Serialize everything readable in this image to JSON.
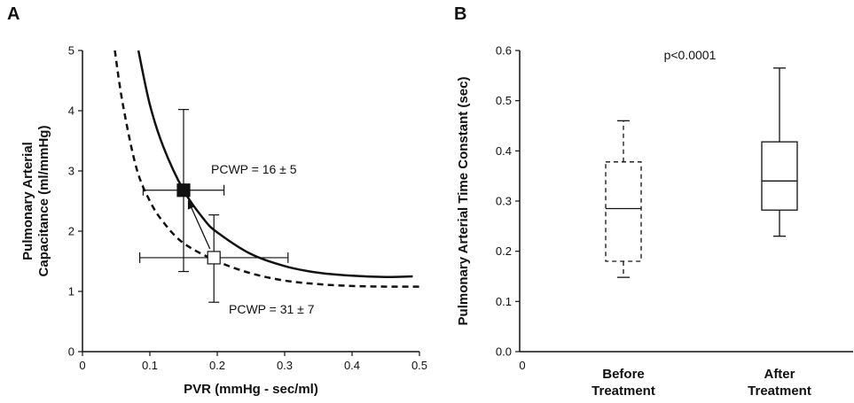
{
  "chart_data": [
    {
      "panel": "A",
      "type": "line",
      "xlabel": "PVR (mmHg - sec/ml)",
      "ylabel_lines": [
        "Pulmonary Arterial",
        "Capacitance (ml/mmHg)"
      ],
      "xlim": [
        0,
        0.5
      ],
      "ylim": [
        0,
        5
      ],
      "x_ticks": [
        "0",
        "0.1",
        "0.2",
        "0.3",
        "0.4",
        "0.5"
      ],
      "y_ticks": [
        "0",
        "1",
        "2",
        "3",
        "4",
        "5"
      ],
      "grid": false,
      "series": [
        {
          "style": "solid",
          "x": [
            0.083,
            0.1,
            0.12,
            0.15,
            0.18,
            0.2,
            0.25,
            0.3,
            0.35,
            0.4,
            0.45,
            0.49
          ],
          "y": [
            5.0,
            4.1,
            3.4,
            2.68,
            2.2,
            1.98,
            1.62,
            1.42,
            1.31,
            1.26,
            1.24,
            1.25
          ]
        },
        {
          "style": "dashed",
          "x": [
            0.048,
            0.06,
            0.08,
            0.1,
            0.12,
            0.15,
            0.2,
            0.25,
            0.3,
            0.35,
            0.4,
            0.45,
            0.5
          ],
          "y": [
            5.0,
            4.1,
            3.05,
            2.5,
            2.15,
            1.8,
            1.5,
            1.3,
            1.18,
            1.12,
            1.09,
            1.08,
            1.08
          ]
        }
      ],
      "points": [
        {
          "label": "PCWP = 16 ± 5",
          "marker": "filled-square",
          "x": 0.15,
          "y": 2.68,
          "x_err": [
            0.09,
            0.21
          ],
          "y_err": [
            1.33,
            4.02
          ]
        },
        {
          "label": "PCWP = 31 ± 7",
          "marker": "open-square",
          "x": 0.195,
          "y": 1.56,
          "x_err": [
            0.085,
            0.305
          ],
          "y_err": [
            0.82,
            2.27
          ]
        }
      ],
      "arrow": {
        "from": [
          0.195,
          1.56
        ],
        "to": [
          0.15,
          2.68
        ]
      }
    },
    {
      "panel": "B",
      "type": "box",
      "ylabel": "Pulmonary Arterial Time Constant (sec)",
      "ylim": [
        0,
        0.6
      ],
      "y_ticks": [
        "0.0",
        "0.1",
        "0.2",
        "0.3",
        "0.4",
        "0.5",
        "0.6"
      ],
      "x_tick_zero": "0",
      "annotation": "p<0.0001",
      "grid": false,
      "boxes": [
        {
          "label_lines": [
            "Before",
            "Treatment"
          ],
          "style": "dashed",
          "min": 0.148,
          "q1": 0.18,
          "median": 0.285,
          "q3": 0.378,
          "max": 0.46
        },
        {
          "label_lines": [
            "After",
            "Treatment"
          ],
          "style": "solid",
          "min": 0.23,
          "q1": 0.282,
          "median": 0.34,
          "q3": 0.418,
          "max": 0.565
        }
      ]
    }
  ]
}
